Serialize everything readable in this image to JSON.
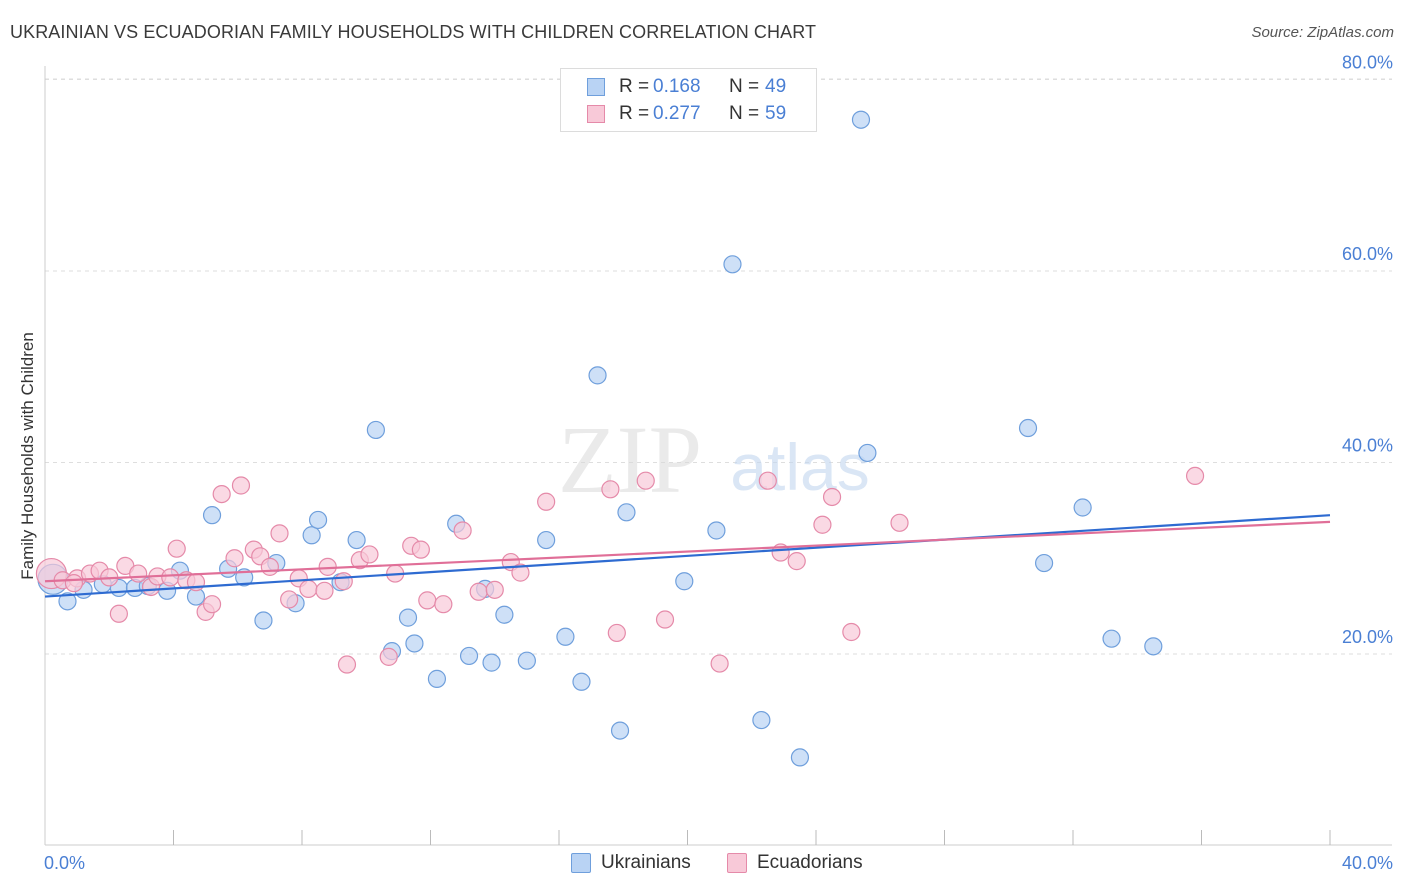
{
  "title": "UKRAINIAN VS ECUADORIAN FAMILY HOUSEHOLDS WITH CHILDREN CORRELATION CHART",
  "source": "Source: ZipAtlas.com",
  "watermark": {
    "zip": "ZIP",
    "atlas": "atlas"
  },
  "legend": {
    "r_label": "R =",
    "n_label": "N =",
    "series": [
      {
        "r": "0.168",
        "n": "49"
      },
      {
        "r": "0.277",
        "n": "59"
      }
    ]
  },
  "bottom_legend": [
    "Ukrainians",
    "Ecuadorians"
  ],
  "colors": {
    "blue_fill": "#b9d3f4",
    "blue_stroke": "#6f9fdc",
    "blue_line": "#2e6bd1",
    "pink_fill": "#f8c9d8",
    "pink_stroke": "#e58aa9",
    "pink_line": "#e06f98",
    "tick_text": "#4a7fd4",
    "grid": "#dedede"
  },
  "chart_data": {
    "type": "scatter",
    "title": "UKRAINIAN VS ECUADORIAN FAMILY HOUSEHOLDS WITH CHILDREN CORRELATION CHART",
    "xlabel": "",
    "ylabel": "Family Households with Children",
    "xlim": [
      0,
      40
    ],
    "ylim": [
      3,
      83
    ],
    "x_tick_labels": [
      "0.0%",
      "40.0%"
    ],
    "y_ticks": [
      20,
      40,
      60,
      80
    ],
    "y_tick_labels": [
      "20.0%",
      "40.0%",
      "60.0%",
      "80.0%"
    ],
    "grid": true,
    "legend_position": "top-center",
    "series": [
      {
        "name": "Ukrainians",
        "color": "#b9d3f4",
        "trend": {
          "x": [
            0,
            40
          ],
          "y": [
            26.0,
            34.5
          ]
        },
        "points": [
          {
            "x": 0.25,
            "y": 27.8,
            "big": true
          },
          {
            "x": 0.7,
            "y": 25.5
          },
          {
            "x": 1.2,
            "y": 26.7
          },
          {
            "x": 1.8,
            "y": 27.3
          },
          {
            "x": 2.3,
            "y": 26.9
          },
          {
            "x": 2.8,
            "y": 26.9
          },
          {
            "x": 3.2,
            "y": 27.1
          },
          {
            "x": 3.8,
            "y": 26.6
          },
          {
            "x": 4.2,
            "y": 28.7
          },
          {
            "x": 4.7,
            "y": 26.0
          },
          {
            "x": 5.2,
            "y": 34.5
          },
          {
            "x": 5.7,
            "y": 28.9
          },
          {
            "x": 6.2,
            "y": 28.0
          },
          {
            "x": 6.8,
            "y": 23.5
          },
          {
            "x": 7.2,
            "y": 29.5
          },
          {
            "x": 7.8,
            "y": 25.3
          },
          {
            "x": 8.3,
            "y": 32.4
          },
          {
            "x": 8.5,
            "y": 34.0
          },
          {
            "x": 9.2,
            "y": 27.5
          },
          {
            "x": 9.7,
            "y": 31.9
          },
          {
            "x": 10.3,
            "y": 43.4
          },
          {
            "x": 10.8,
            "y": 20.3
          },
          {
            "x": 11.3,
            "y": 23.8
          },
          {
            "x": 11.5,
            "y": 21.1
          },
          {
            "x": 12.2,
            "y": 17.4
          },
          {
            "x": 12.8,
            "y": 33.6
          },
          {
            "x": 13.2,
            "y": 19.8
          },
          {
            "x": 13.7,
            "y": 26.8
          },
          {
            "x": 13.9,
            "y": 19.1
          },
          {
            "x": 14.3,
            "y": 24.1
          },
          {
            "x": 15.0,
            "y": 19.3
          },
          {
            "x": 15.6,
            "y": 31.9
          },
          {
            "x": 16.2,
            "y": 21.8
          },
          {
            "x": 16.7,
            "y": 17.1
          },
          {
            "x": 17.2,
            "y": 49.1
          },
          {
            "x": 17.9,
            "y": 12.0
          },
          {
            "x": 18.1,
            "y": 34.8
          },
          {
            "x": 19.9,
            "y": 27.6
          },
          {
            "x": 20.9,
            "y": 32.9
          },
          {
            "x": 21.4,
            "y": 60.7
          },
          {
            "x": 22.3,
            "y": 13.1
          },
          {
            "x": 23.5,
            "y": 9.2
          },
          {
            "x": 25.4,
            "y": 75.8
          },
          {
            "x": 25.6,
            "y": 41.0
          },
          {
            "x": 30.6,
            "y": 43.6
          },
          {
            "x": 31.1,
            "y": 29.5
          },
          {
            "x": 32.3,
            "y": 35.3
          },
          {
            "x": 33.2,
            "y": 21.6
          },
          {
            "x": 34.5,
            "y": 20.8
          }
        ]
      },
      {
        "name": "Ecuadorians",
        "color": "#f8c9d8",
        "trend": {
          "x": [
            0,
            40
          ],
          "y": [
            27.6,
            33.8
          ]
        },
        "points": [
          {
            "x": 0.2,
            "y": 28.4,
            "big": true
          },
          {
            "x": 0.55,
            "y": 27.7
          },
          {
            "x": 1.0,
            "y": 27.9
          },
          {
            "x": 1.4,
            "y": 28.4
          },
          {
            "x": 1.7,
            "y": 28.7
          },
          {
            "x": 2.0,
            "y": 28.0
          },
          {
            "x": 2.3,
            "y": 24.2
          },
          {
            "x": 2.5,
            "y": 29.2
          },
          {
            "x": 2.9,
            "y": 28.4
          },
          {
            "x": 3.3,
            "y": 27.0
          },
          {
            "x": 3.5,
            "y": 28.1
          },
          {
            "x": 3.9,
            "y": 28.0
          },
          {
            "x": 4.1,
            "y": 31.0
          },
          {
            "x": 4.4,
            "y": 27.7
          },
          {
            "x": 4.7,
            "y": 27.5
          },
          {
            "x": 5.0,
            "y": 24.4
          },
          {
            "x": 5.2,
            "y": 25.2
          },
          {
            "x": 5.5,
            "y": 36.7
          },
          {
            "x": 5.9,
            "y": 30.0
          },
          {
            "x": 6.1,
            "y": 37.6
          },
          {
            "x": 6.5,
            "y": 30.9
          },
          {
            "x": 6.7,
            "y": 30.2
          },
          {
            "x": 7.0,
            "y": 29.1
          },
          {
            "x": 7.3,
            "y": 32.6
          },
          {
            "x": 7.6,
            "y": 25.7
          },
          {
            "x": 7.9,
            "y": 27.9
          },
          {
            "x": 8.2,
            "y": 26.8
          },
          {
            "x": 8.7,
            "y": 26.6
          },
          {
            "x": 8.8,
            "y": 29.1
          },
          {
            "x": 9.3,
            "y": 27.6
          },
          {
            "x": 9.4,
            "y": 18.9
          },
          {
            "x": 9.8,
            "y": 29.8
          },
          {
            "x": 10.1,
            "y": 30.4
          },
          {
            "x": 10.7,
            "y": 19.7
          },
          {
            "x": 10.9,
            "y": 28.4
          },
          {
            "x": 11.4,
            "y": 31.3
          },
          {
            "x": 11.7,
            "y": 30.9
          },
          {
            "x": 11.9,
            "y": 25.6
          },
          {
            "x": 12.4,
            "y": 25.2
          },
          {
            "x": 13.0,
            "y": 32.9
          },
          {
            "x": 13.5,
            "y": 26.5
          },
          {
            "x": 14.0,
            "y": 26.7
          },
          {
            "x": 14.5,
            "y": 29.6
          },
          {
            "x": 14.8,
            "y": 28.5
          },
          {
            "x": 15.6,
            "y": 35.9
          },
          {
            "x": 17.6,
            "y": 37.2
          },
          {
            "x": 17.8,
            "y": 22.2
          },
          {
            "x": 18.7,
            "y": 38.1
          },
          {
            "x": 19.3,
            "y": 23.6
          },
          {
            "x": 21.0,
            "y": 19.0
          },
          {
            "x": 22.5,
            "y": 38.1
          },
          {
            "x": 22.9,
            "y": 30.6
          },
          {
            "x": 23.4,
            "y": 29.7
          },
          {
            "x": 24.2,
            "y": 33.5
          },
          {
            "x": 24.5,
            "y": 36.4
          },
          {
            "x": 25.1,
            "y": 22.3
          },
          {
            "x": 26.6,
            "y": 33.7
          },
          {
            "x": 35.8,
            "y": 38.6
          },
          {
            "x": 0.9,
            "y": 27.4
          }
        ]
      }
    ]
  }
}
